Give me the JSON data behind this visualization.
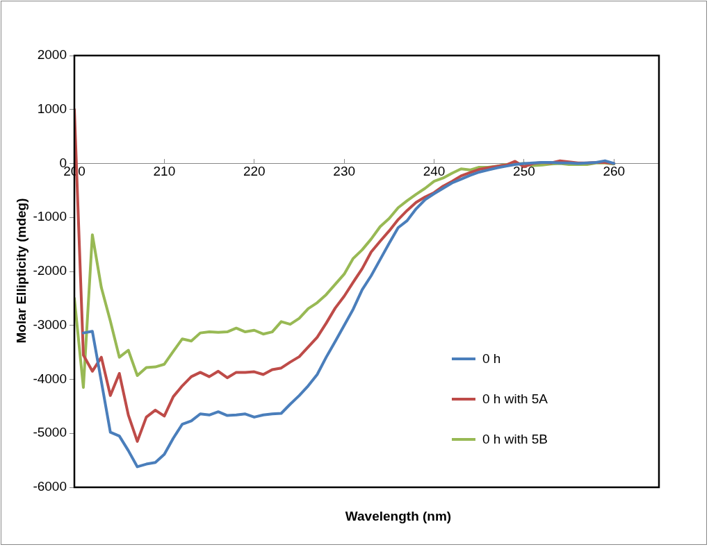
{
  "chart_data": {
    "type": "line",
    "xlabel": "Wavelength (nm)",
    "ylabel": "Molar Ellipticity (mdeg)",
    "x": [
      200,
      201,
      202,
      203,
      204,
      205,
      206,
      207,
      208,
      209,
      210,
      211,
      212,
      213,
      214,
      215,
      216,
      217,
      218,
      219,
      220,
      221,
      222,
      223,
      224,
      225,
      226,
      227,
      228,
      229,
      230,
      231,
      232,
      233,
      234,
      235,
      236,
      237,
      238,
      239,
      240,
      241,
      242,
      243,
      244,
      245,
      246,
      247,
      248,
      249,
      250,
      251,
      252,
      253,
      254,
      255,
      256,
      257,
      258,
      259,
      260
    ],
    "xlim": [
      200,
      265
    ],
    "xticks": [
      200,
      210,
      220,
      230,
      240,
      250,
      260
    ],
    "ylim": [
      -6000,
      2000
    ],
    "yticks": [
      -6000,
      -5000,
      -4000,
      -3000,
      -2000,
      -1000,
      0,
      1000,
      2000
    ],
    "grid": false,
    "legend": "right",
    "marker": "none",
    "line_style": "solid",
    "series": [
      {
        "name": "0 h",
        "color": "#4a7ebb",
        "values": [
          null,
          -3140,
          -3110,
          -4040,
          -4980,
          -5050,
          -5320,
          -5620,
          -5570,
          -5540,
          -5390,
          -5090,
          -4830,
          -4770,
          -4640,
          -4660,
          -4600,
          -4670,
          -4660,
          -4640,
          -4700,
          -4660,
          -4640,
          -4630,
          -4460,
          -4300,
          -4120,
          -3910,
          -3590,
          -3300,
          -3000,
          -2700,
          -2340,
          -2080,
          -1780,
          -1480,
          -1190,
          -1060,
          -840,
          -670,
          -560,
          -460,
          -360,
          -290,
          -220,
          -160,
          -120,
          -80,
          -50,
          -20,
          0,
          10,
          20,
          20,
          10,
          10,
          0,
          10,
          20,
          50,
          0
        ]
      },
      {
        "name": "0 h with 5A",
        "color": "#be4b48",
        "values": [
          1000,
          -3550,
          -3850,
          -3590,
          -4300,
          -3890,
          -4660,
          -5150,
          -4700,
          -4570,
          -4680,
          -4320,
          -4120,
          -3950,
          -3870,
          -3950,
          -3850,
          -3970,
          -3870,
          -3870,
          -3860,
          -3910,
          -3820,
          -3790,
          -3680,
          -3580,
          -3400,
          -3220,
          -2960,
          -2680,
          -2460,
          -2200,
          -1950,
          -1640,
          -1440,
          -1250,
          -1040,
          -870,
          -720,
          -620,
          -540,
          -420,
          -330,
          -230,
          -170,
          -110,
          -80,
          -50,
          -30,
          40,
          -60,
          0,
          20,
          10,
          50,
          30,
          10,
          10,
          20,
          20,
          0
        ]
      },
      {
        "name": "0 h with 5B",
        "color": "#98b954",
        "values": [
          -2500,
          -4150,
          -1320,
          -2300,
          -2920,
          -3590,
          -3460,
          -3930,
          -3780,
          -3770,
          -3720,
          -3480,
          -3250,
          -3290,
          -3140,
          -3120,
          -3130,
          -3120,
          -3050,
          -3120,
          -3090,
          -3160,
          -3120,
          -2930,
          -2980,
          -2870,
          -2690,
          -2580,
          -2430,
          -2240,
          -2050,
          -1760,
          -1600,
          -1400,
          -1170,
          -1020,
          -820,
          -690,
          -570,
          -460,
          -330,
          -270,
          -180,
          -100,
          -120,
          -70,
          -70,
          -50,
          -20,
          -10,
          0,
          -40,
          -30,
          -10,
          0,
          -20,
          -20,
          -20,
          10,
          10,
          -10
        ]
      }
    ]
  }
}
